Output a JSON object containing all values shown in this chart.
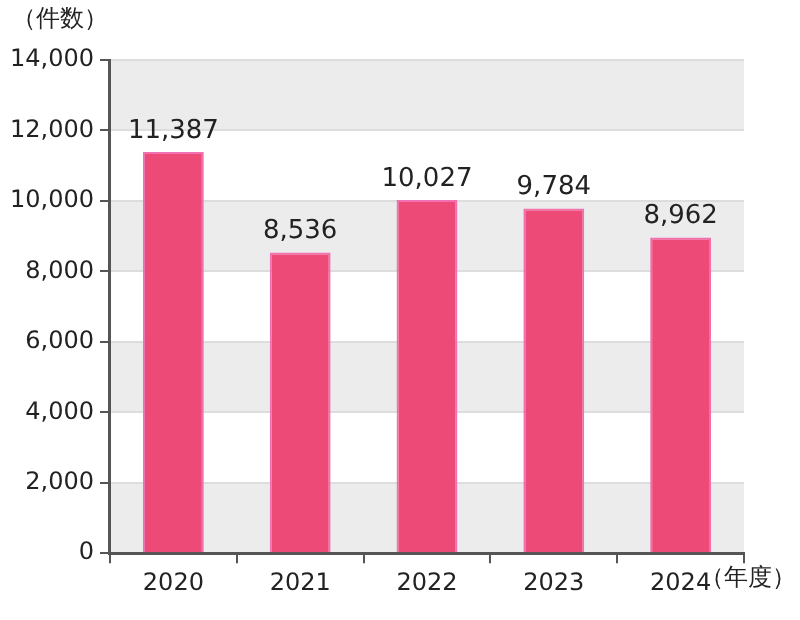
{
  "chart_data": {
    "type": "bar",
    "ylabel": "（件数）",
    "xlabel": "（年度）",
    "categories": [
      "2020",
      "2021",
      "2022",
      "2023",
      "2024"
    ],
    "values": [
      11387,
      8536,
      10027,
      9784,
      8962
    ],
    "color": "#ee4a78",
    "ylim": [
      0,
      14000
    ],
    "yticks": [
      {
        "value": 0,
        "label": "0"
      },
      {
        "value": 2000,
        "label": "2,000"
      },
      {
        "value": 4000,
        "label": "4,000"
      },
      {
        "value": 6000,
        "label": "6,000"
      },
      {
        "value": 8000,
        "label": "8,000"
      },
      {
        "value": 10000,
        "label": "10,000"
      },
      {
        "value": 12000,
        "label": "12,000"
      },
      {
        "value": 14000,
        "label": "14,000"
      }
    ],
    "value_labels": [
      "11,387",
      "8,536",
      "10,027",
      "9,784",
      "8,962"
    ],
    "grid": "y",
    "legend": false
  }
}
